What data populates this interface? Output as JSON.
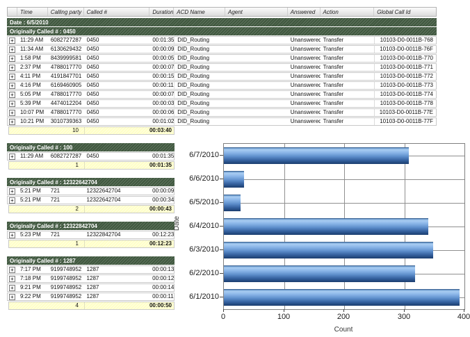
{
  "report": {
    "columns": [
      {
        "key": "exp",
        "label": ""
      },
      {
        "key": "time",
        "label": "Time"
      },
      {
        "key": "calling",
        "label": "Calling party #"
      },
      {
        "key": "called",
        "label": "Called #"
      },
      {
        "key": "dur",
        "label": "Duration"
      },
      {
        "key": "acd",
        "label": "ACD Name"
      },
      {
        "key": "agent",
        "label": "Agent"
      },
      {
        "key": "ans",
        "label": "Answered"
      },
      {
        "key": "act",
        "label": "Action"
      },
      {
        "key": "gcid",
        "label": "Global Call Id"
      }
    ],
    "date_band": "Date : 6/5/2010",
    "expand_glyph": "+",
    "groups": [
      {
        "label": "Originally Called # : 0450",
        "full_width": true,
        "rows": [
          [
            "11:29 AM",
            "6082727287",
            "0450",
            "00:01:35",
            "DID_Routing",
            "",
            "Unanswered",
            "Transfer",
            "10103-D0-0011B-768"
          ],
          [
            "11:34 AM",
            "6130629432",
            "0450",
            "00:00:09",
            "DID_Routing",
            "",
            "Unanswered",
            "Transfer",
            "10103-D0-0011B-76F"
          ],
          [
            "1:58 PM",
            "8439999581",
            "0450",
            "00:00:05",
            "DID_Routing",
            "",
            "Unanswered",
            "Transfer",
            "10103-D0-0011B-770"
          ],
          [
            "2:37 PM",
            "4788017770",
            "0450",
            "00:00:07",
            "DID_Routing",
            "",
            "Unanswered",
            "Transfer",
            "10103-D0-0011B-771"
          ],
          [
            "4:11 PM",
            "4191847701",
            "0450",
            "00:00:15",
            "DID_Routing",
            "",
            "Unanswered",
            "Transfer",
            "10103-D0-0011B-772"
          ],
          [
            "4:16 PM",
            "6169460905",
            "0450",
            "00:00:11",
            "DID_Routing",
            "",
            "Unanswered",
            "Transfer",
            "10103-D0-0011B-773"
          ],
          [
            "5:05 PM",
            "4788017770",
            "0450",
            "00:00:07",
            "DID_Routing",
            "",
            "Unanswered",
            "Transfer",
            "10103-D0-0011B-774"
          ],
          [
            "5:39 PM",
            "4474012204",
            "0450",
            "00:00:03",
            "DID_Routing",
            "",
            "Unanswered",
            "Transfer",
            "10103-D0-0011B-778"
          ],
          [
            "10:07 PM",
            "4788017770",
            "0450",
            "00:00:06",
            "DID_Routing",
            "",
            "Unanswered",
            "Transfer",
            "10103-D0-0011B-77E"
          ],
          [
            "10:21 PM",
            "3010739363",
            "0450",
            "00:01:02",
            "DID_Routing",
            "",
            "Unanswered",
            "Transfer",
            "10103-D0-0011B-77F"
          ]
        ],
        "summary": {
          "count": "10",
          "duration": "00:03:40"
        }
      },
      {
        "label": "Originally Called # : 100",
        "full_width": false,
        "rows": [
          [
            "11:29 AM",
            "6082727287",
            "0450",
            "00:01:35"
          ]
        ],
        "summary": {
          "count": "1",
          "duration": "00:01:35"
        }
      },
      {
        "label": "Originally Called # : 12322642704",
        "full_width": false,
        "rows": [
          [
            "5:21 PM",
            "721",
            "12322642704",
            "00:00:09"
          ],
          [
            "5:21 PM",
            "721",
            "12322642704",
            "00:00:34"
          ]
        ],
        "summary": {
          "count": "2",
          "duration": "00:00:43"
        }
      },
      {
        "label": "Originally Called # : 12322842704",
        "full_width": false,
        "rows": [
          [
            "5:23 PM",
            "721",
            "12322842704",
            "00:12:23"
          ]
        ],
        "summary": {
          "count": "1",
          "duration": "00:12:23"
        }
      },
      {
        "label": "Originally Called # : 1287",
        "full_width": false,
        "rows": [
          [
            "7:17 PM",
            "9199748952",
            "1287",
            "00:00:13"
          ],
          [
            "7:18 PM",
            "9199748952",
            "1287",
            "00:00:12"
          ],
          [
            "9:21 PM",
            "9199748952",
            "1287",
            "00:00:14"
          ],
          [
            "9:22 PM",
            "9199748952",
            "1287",
            "00:00:11"
          ]
        ],
        "summary": {
          "count": "4",
          "duration": "00:00:50"
        }
      }
    ]
  },
  "chart_data": {
    "type": "bar",
    "orientation": "horizontal",
    "categories_top_to_bottom": [
      "6/7/2010",
      "6/6/2010",
      "6/5/2010",
      "6/4/2010",
      "6/3/2010",
      "6/2/2010",
      "6/1/2010"
    ],
    "values": [
      308,
      33,
      28,
      340,
      348,
      318,
      392
    ],
    "title": "",
    "xlabel": "Count",
    "ylabel": "Date",
    "xlim": [
      0,
      400
    ],
    "xticks": [
      0,
      100,
      200,
      300,
      400
    ],
    "grid": true,
    "bar_color_top": "#a9cdf2",
    "bar_color_bottom": "#1b3c6e"
  }
}
